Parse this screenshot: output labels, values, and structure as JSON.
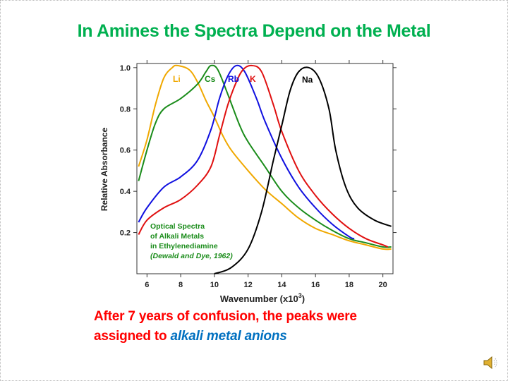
{
  "slide": {
    "title": "In Amines the Spectra Depend on the Metal",
    "caption_line1": "After 7 years of confusion, the peaks were",
    "caption_line2_prefix": "assigned to ",
    "caption_line2_highlight": "alkali metal anions",
    "caption_color": "#ff0000",
    "highlight_color": "#0070c0",
    "title_color": "#00b050",
    "audio_icon": "speaker-icon"
  },
  "chart_data": {
    "type": "line",
    "title": "",
    "xlabel": "Wavenumber (x10",
    "xlabel_sup": "3",
    "xlabel_end": ")",
    "ylabel": "Relative Absorbance",
    "xlim": [
      5.4,
      20.6
    ],
    "ylim": [
      0.0,
      1.02
    ],
    "xticks": [
      "6",
      "8",
      "10",
      "12",
      "14",
      "16",
      "18",
      "20"
    ],
    "yticks": [
      "0.2",
      "0.4",
      "0.6",
      "0.8",
      "1.0"
    ],
    "grid": false,
    "annotation": [
      "Optical Spectra",
      "of Alkali Metals",
      "in Ethylenediamine",
      "(Dewald and Dye, 1962)"
    ],
    "annotation_color": "#1a8c1a",
    "series": [
      {
        "name": "Li",
        "color": "#f0a800",
        "x": [
          5.5,
          6,
          6.5,
          7,
          7.5,
          7.8,
          8.5,
          9,
          9.5,
          10,
          10.5,
          11,
          12,
          13,
          14,
          15,
          16,
          17,
          18,
          19,
          20,
          20.5
        ],
        "y": [
          0.52,
          0.65,
          0.82,
          0.95,
          1.0,
          1.01,
          0.99,
          0.93,
          0.84,
          0.76,
          0.67,
          0.6,
          0.5,
          0.41,
          0.34,
          0.27,
          0.22,
          0.19,
          0.16,
          0.14,
          0.12,
          0.12
        ]
      },
      {
        "name": "Cs",
        "color": "#1a8c1a",
        "x": [
          5.5,
          6,
          6.5,
          7,
          8,
          9,
          9.5,
          9.8,
          10.2,
          10.8,
          11.5,
          12,
          13,
          14,
          15,
          16,
          17,
          18,
          19,
          20,
          20.5
        ],
        "y": [
          0.45,
          0.6,
          0.73,
          0.8,
          0.85,
          0.92,
          0.98,
          1.01,
          0.99,
          0.87,
          0.72,
          0.64,
          0.52,
          0.4,
          0.32,
          0.26,
          0.21,
          0.17,
          0.15,
          0.13,
          0.13
        ]
      },
      {
        "name": "Rb",
        "color": "#1010e0",
        "x": [
          5.5,
          6,
          7,
          8,
          9,
          9.8,
          10.3,
          10.8,
          11.3,
          11.8,
          12.5,
          13,
          14,
          15,
          16,
          17,
          18,
          18.3
        ],
        "y": [
          0.25,
          0.32,
          0.42,
          0.47,
          0.55,
          0.7,
          0.85,
          0.96,
          1.01,
          0.98,
          0.85,
          0.74,
          0.56,
          0.42,
          0.32,
          0.24,
          0.18,
          0.17
        ]
      },
      {
        "name": "K",
        "color": "#e01010",
        "x": [
          5.5,
          6,
          7,
          8,
          9,
          9.8,
          10.3,
          10.8,
          11.3,
          11.7,
          12.2,
          12.8,
          13.5,
          14,
          15,
          16,
          17,
          18,
          19,
          20,
          20.3
        ],
        "y": [
          0.19,
          0.26,
          0.32,
          0.36,
          0.43,
          0.52,
          0.67,
          0.82,
          0.93,
          0.99,
          1.01,
          0.98,
          0.82,
          0.69,
          0.5,
          0.38,
          0.29,
          0.22,
          0.17,
          0.14,
          0.13
        ]
      },
      {
        "name": "Na",
        "color": "#000000",
        "x": [
          10,
          11,
          12,
          12.8,
          13.5,
          14,
          14.5,
          15,
          15.6,
          16.2,
          16.8,
          17.2,
          17.8,
          18.5,
          19.5,
          20.5
        ],
        "y": [
          0.0,
          0.03,
          0.12,
          0.3,
          0.55,
          0.72,
          0.89,
          0.98,
          1.0,
          0.95,
          0.8,
          0.6,
          0.42,
          0.32,
          0.26,
          0.23
        ]
      }
    ]
  }
}
